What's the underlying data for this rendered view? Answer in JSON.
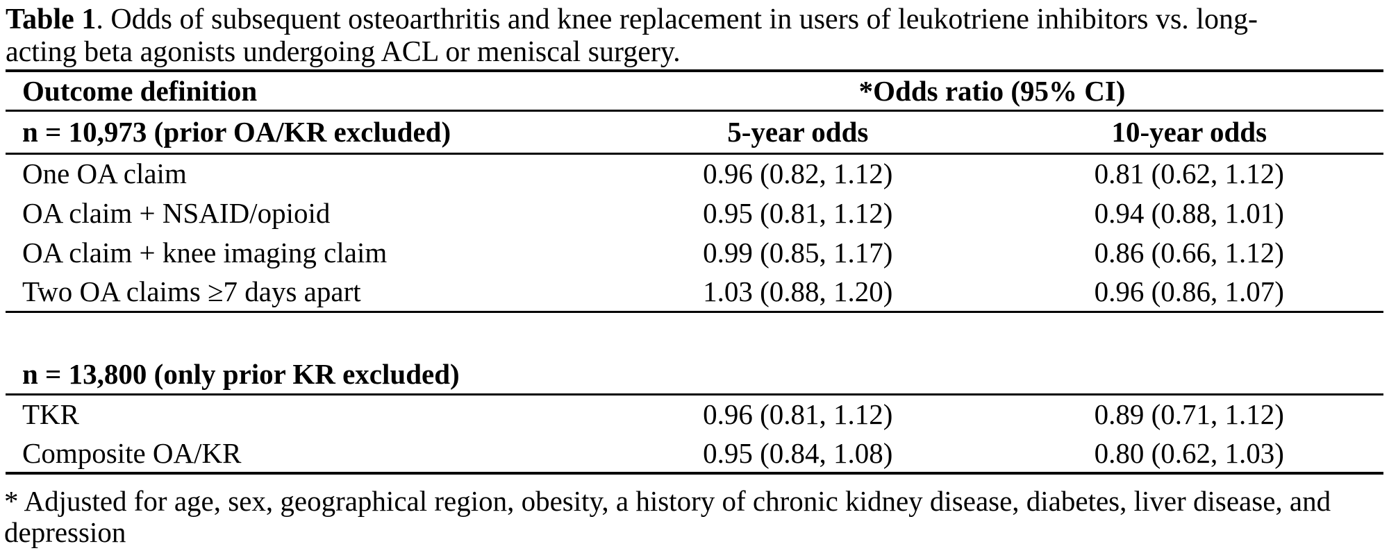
{
  "title": {
    "label": "Table 1",
    "line1_rest": ". Odds of subsequent osteoarthritis and knee replacement in users of leukotriene inhibitors vs. long-",
    "line2": "acting beta agonists undergoing ACL or meniscal surgery."
  },
  "table": {
    "columns": {
      "outcome": "Outcome definition",
      "odds_ratio": "*Odds ratio (95% CI)",
      "five_year": "5-year odds",
      "ten_year": "10-year odds"
    },
    "section1": {
      "label": "n = 10,973 (prior OA/KR excluded)",
      "rows": [
        {
          "outcome": "One OA claim",
          "odds_5yr": "0.96 (0.82, 1.12)",
          "odds_10yr": "0.81 (0.62, 1.12)"
        },
        {
          "outcome": "OA claim + NSAID/opioid",
          "odds_5yr": "0.95 (0.81, 1.12)",
          "odds_10yr": "0.94 (0.88, 1.01)"
        },
        {
          "outcome": "OA claim + knee imaging claim",
          "odds_5yr": "0.99 (0.85, 1.17)",
          "odds_10yr": "0.86 (0.66, 1.12)"
        },
        {
          "outcome": "Two OA claims ≥7 days apart",
          "odds_5yr": "1.03 (0.88, 1.20)",
          "odds_10yr": "0.96 (0.86, 1.07)"
        }
      ]
    },
    "section2": {
      "label": "n = 13,800 (only prior KR excluded)",
      "rows": [
        {
          "outcome": "TKR",
          "odds_5yr": "0.96 (0.81, 1.12)",
          "odds_10yr": "0.89 (0.71, 1.12)"
        },
        {
          "outcome": "Composite OA/KR",
          "odds_5yr": "0.95 (0.84, 1.08)",
          "odds_10yr": "0.80 (0.62, 1.03)"
        }
      ]
    }
  },
  "footnote": {
    "line1": "* Adjusted for age, sex, geographical region, obesity, a history of chronic kidney disease, diabetes, liver disease, and",
    "line2": "depression"
  },
  "colors": {
    "text": "#000000",
    "background": "#ffffff",
    "rule": "#000000"
  }
}
